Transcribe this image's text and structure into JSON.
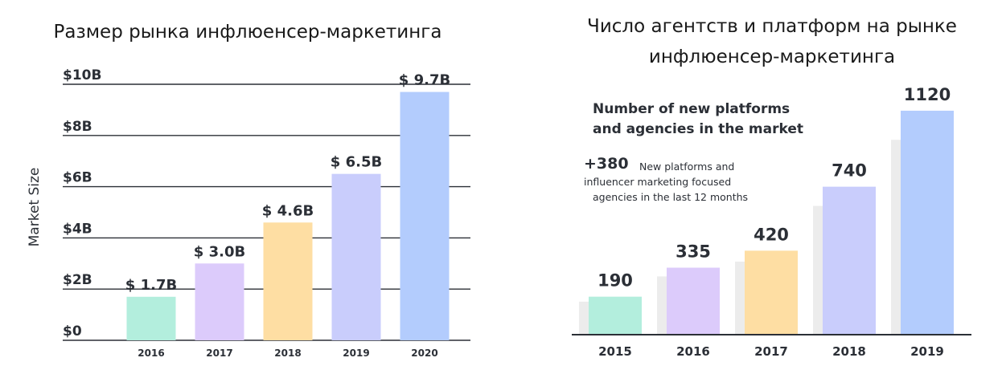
{
  "chart_data": [
    {
      "type": "bar",
      "title": "Размер рынка инфлюенсер-маркетинга",
      "xlabel": "",
      "ylabel": "Market Size",
      "ylim": [
        0,
        10
      ],
      "yticks": [
        "$0",
        "$2B",
        "$4B",
        "$6B",
        "$8B",
        "$10B"
      ],
      "grid": true,
      "categories": [
        "2016",
        "2017",
        "2018",
        "2019",
        "2020"
      ],
      "values": [
        1.7,
        3.0,
        4.6,
        6.5,
        9.7
      ],
      "labels": [
        "$ 1.7B",
        "$ 3.0B",
        "$ 4.6B",
        "$ 6.5B",
        "$ 9.7B"
      ],
      "colors": [
        "#b3eedd",
        "#dccbfb",
        "#fedea3",
        "#c9cdfc",
        "#b3ccfd"
      ]
    },
    {
      "type": "bar",
      "title_lines": [
        "Число агентств и платформ на рынке",
        "инфлюенсер-маркетинга"
      ],
      "inner_title_lines": [
        "Number of new platforms",
        "and agencies in the market"
      ],
      "note_value": "+380",
      "note_lines": [
        "New platforms and",
        "influencer marketing focused",
        "agencies in the last 12 months"
      ],
      "xlabel": "",
      "ylabel": "",
      "ylim": [
        0,
        1200
      ],
      "grid": false,
      "categories": [
        "2015",
        "2016",
        "2017",
        "2018",
        "2019"
      ],
      "values": [
        190,
        335,
        420,
        740,
        1120
      ],
      "labels": [
        "190",
        "335",
        "420",
        "740",
        "1120"
      ],
      "colors": [
        "#b3eedd",
        "#dccbfb",
        "#fedea3",
        "#c9cdfc",
        "#b3ccfd"
      ],
      "shadow_color": "#ececec"
    }
  ]
}
